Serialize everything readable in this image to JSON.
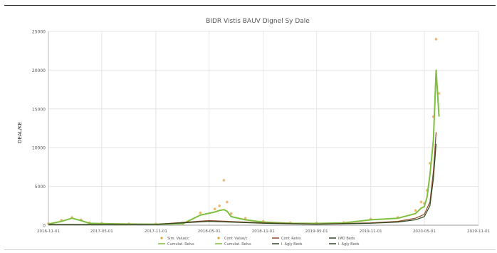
{
  "chart_data": {
    "type": "line",
    "title": "BIDR Vistis BAUV Dignel Sy Dale",
    "xlabel": "",
    "ylabel": "DEAL/KE",
    "x_ticks": [
      "2016-11-01",
      "2017-05-01",
      "2017-11-01",
      "2018-05-01",
      "2018-11-01",
      "2019-05-01",
      "2019-11-01",
      "2020-05-01",
      "2020-11-01"
    ],
    "y_ticks": [
      "0",
      "5000",
      "10000",
      "15000",
      "20000",
      "25000"
    ],
    "ylim": [
      0,
      25000
    ],
    "grid": true,
    "legend_position": "bottom",
    "legend_entries": [
      "Sim. Value/c",
      "Conf. Value/c",
      "Conf. Relvs",
      "IMO Beds",
      "Cumulat. Relvs",
      "Cumulat. Relvs",
      "I. Agly Beds",
      "I. Agly Beds"
    ],
    "series": [
      {
        "name": "Sim. Value/c",
        "color": "#e8a040",
        "style": "markers",
        "x": [
          "2016-11-01",
          "2016-12-15",
          "2017-01-20",
          "2017-02-20",
          "2017-03-20",
          "2017-05-01",
          "2017-08-01",
          "2017-11-01",
          "2018-02-01",
          "2018-04-01",
          "2018-05-20",
          "2018-06-05",
          "2018-06-20",
          "2018-07-01",
          "2018-07-15",
          "2018-09-01",
          "2018-11-01",
          "2019-02-01",
          "2019-05-01",
          "2019-08-01",
          "2019-11-01",
          "2020-02-01",
          "2020-04-01",
          "2020-04-20",
          "2020-05-01",
          "2020-05-10",
          "2020-05-20",
          "2020-06-01",
          "2020-06-10",
          "2020-06-20"
        ],
        "y": [
          200,
          650,
          1000,
          700,
          300,
          250,
          180,
          160,
          220,
          1600,
          2100,
          2500,
          5800,
          3000,
          1500,
          900,
          500,
          300,
          280,
          350,
          800,
          1000,
          1900,
          3000,
          2800,
          4500,
          8000,
          14000,
          24000,
          17000
        ]
      },
      {
        "name": "Conf. Value/c",
        "color": "#7fbf3f",
        "style": "line",
        "x": [
          "2016-11-01",
          "2016-12-15",
          "2017-01-20",
          "2017-02-20",
          "2017-03-20",
          "2017-05-01",
          "2017-08-01",
          "2017-11-01",
          "2018-02-01",
          "2018-04-01",
          "2018-05-20",
          "2018-06-05",
          "2018-06-20",
          "2018-07-01",
          "2018-07-15",
          "2018-09-01",
          "2018-11-01",
          "2019-02-01",
          "2019-05-01",
          "2019-08-01",
          "2019-11-01",
          "2020-02-01",
          "2020-04-01",
          "2020-04-20",
          "2020-05-01",
          "2020-05-10",
          "2020-05-20",
          "2020-06-01",
          "2020-06-10",
          "2020-06-20"
        ],
        "y": [
          150,
          500,
          900,
          600,
          250,
          200,
          150,
          130,
          200,
          1300,
          1700,
          1900,
          2000,
          1800,
          1100,
          700,
          400,
          250,
          230,
          300,
          700,
          900,
          1500,
          2200,
          2400,
          3600,
          6500,
          11000,
          20000,
          14000
        ]
      },
      {
        "name": "Conf. Relvs",
        "color": "#8b4a2a",
        "style": "line",
        "x": [
          "2016-11-01",
          "2017-11-01",
          "2018-05-01",
          "2018-11-01",
          "2019-05-01",
          "2019-11-01",
          "2020-02-01",
          "2020-04-01",
          "2020-05-01",
          "2020-05-20",
          "2020-06-01",
          "2020-06-10"
        ],
        "y": [
          100,
          120,
          600,
          300,
          150,
          300,
          500,
          900,
          1400,
          3000,
          7000,
          12000
        ]
      },
      {
        "name": "IMO Beds",
        "color": "#2d4a1e",
        "style": "line",
        "x": [
          "2016-11-01",
          "2017-11-01",
          "2018-05-01",
          "2018-11-01",
          "2019-05-01",
          "2019-11-01",
          "2020-02-01",
          "2020-04-01",
          "2020-05-01",
          "2020-05-20",
          "2020-06-01",
          "2020-06-10"
        ],
        "y": [
          80,
          100,
          500,
          250,
          120,
          250,
          400,
          700,
          1100,
          2500,
          6000,
          10500
        ]
      }
    ]
  }
}
